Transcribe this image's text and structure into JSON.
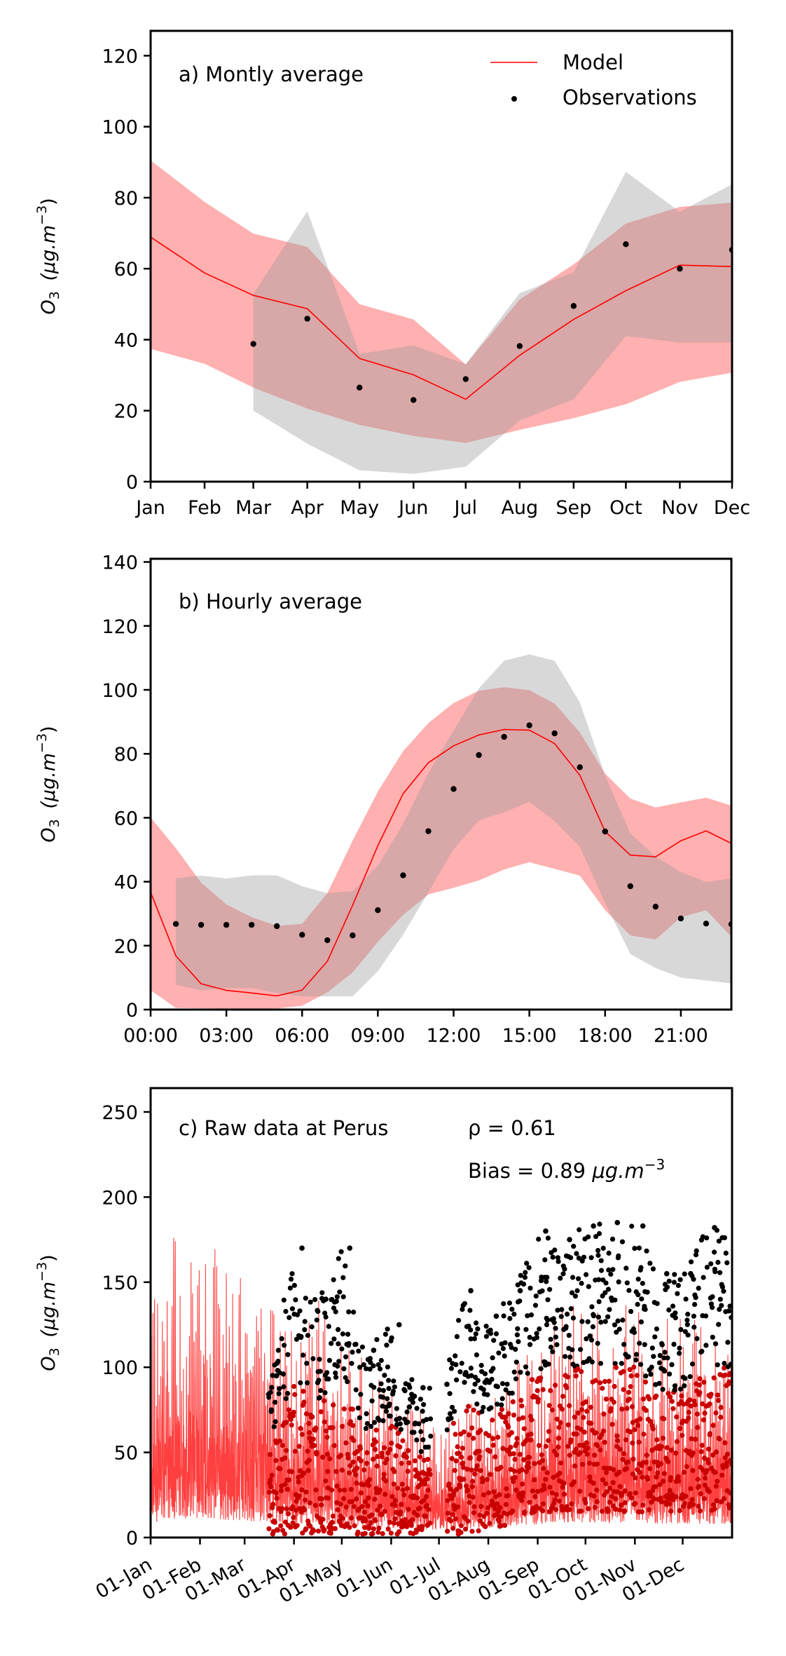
{
  "figure": {
    "ylabel_main": "O",
    "ylabel_sub": "3",
    "ylabel_unit": "(μg.m",
    "ylabel_exp": "−3",
    "ylabel_close": ")"
  },
  "chart_data": [
    {
      "id": "panel-a",
      "type": "line",
      "title": "a) Montly average",
      "xlabel": "",
      "ylabel": "O3 (μg.m−3)",
      "x_ticks": [
        "Jan",
        "Feb",
        "Mar",
        "Apr",
        "May",
        "Jun",
        "Jul",
        "Aug",
        "Sep",
        "Oct",
        "Nov",
        "Dec"
      ],
      "x_tick_days": [
        0,
        31,
        59,
        90,
        120,
        151,
        181,
        212,
        243,
        273,
        304,
        334
      ],
      "xlim_days": [
        0,
        334
      ],
      "ylim": [
        0,
        127
      ],
      "y_ticks": [
        0,
        20,
        40,
        60,
        80,
        100,
        120
      ],
      "legend": {
        "placement": "top-right",
        "entries": [
          {
            "label": "Model",
            "kind": "line",
            "color": "#ff0000"
          },
          {
            "label": "Observations",
            "kind": "dot",
            "color": "#000000"
          }
        ]
      },
      "colors": {
        "model_line": "#ff0000",
        "model_band": "#fcb0b1",
        "obs_band": "#d6d6d6",
        "overlap": "#d8a2a3",
        "obs": "#000000"
      },
      "model": [
        68.9,
        58.8,
        52.5,
        48.7,
        34.7,
        30.1,
        23.2,
        35.6,
        45.7,
        53.8,
        61.0,
        60.6
      ],
      "model_upper": [
        90.5,
        78.8,
        69.9,
        66.1,
        50.0,
        45.7,
        33.0,
        51.3,
        61.2,
        72.7,
        77.4,
        78.6
      ],
      "model_lower": [
        37.4,
        33.2,
        26.5,
        20.6,
        16.0,
        12.9,
        10.9,
        14.6,
        17.9,
        21.8,
        28.1,
        30.7
      ],
      "obs": [
        null,
        null,
        38.8,
        45.9,
        26.5,
        23.0,
        28.9,
        38.2,
        49.5,
        66.9,
        60.0,
        65.3
      ],
      "obs_upper": [
        null,
        null,
        52.9,
        76.2,
        36.0,
        38.4,
        33.1,
        53.1,
        59.0,
        87.3,
        76.0,
        83.8
      ],
      "obs_lower": [
        null,
        null,
        20.0,
        10.7,
        3.2,
        2.2,
        4.2,
        17.2,
        23.2,
        41.0,
        39.2,
        39.2
      ]
    },
    {
      "id": "panel-b",
      "type": "line",
      "title": "b) Hourly average",
      "xlabel": "",
      "ylabel": "O3 (μg.m−3)",
      "x_ticks": [
        "00:00",
        "03:00",
        "06:00",
        "09:00",
        "12:00",
        "15:00",
        "18:00",
        "21:00"
      ],
      "x_tick_hours": [
        0,
        3,
        6,
        9,
        12,
        15,
        18,
        21
      ],
      "xlim": [
        0,
        23
      ],
      "ylim": [
        0,
        141
      ],
      "y_ticks": [
        0,
        20,
        40,
        60,
        80,
        100,
        120,
        140
      ],
      "hours": [
        0,
        1,
        2,
        3,
        4,
        5,
        6,
        7,
        8,
        9,
        10,
        11,
        12,
        13,
        14,
        15,
        16,
        17,
        18,
        19,
        20,
        21,
        22,
        23
      ],
      "model": [
        36.7,
        16.8,
        8.1,
        6.0,
        5.2,
        4.3,
        6.1,
        15.1,
        32.6,
        51.3,
        67.5,
        77.2,
        82.5,
        85.9,
        87.6,
        87.4,
        83.2,
        73.3,
        55.7,
        48.3,
        47.8,
        52.8,
        55.9,
        52.0
      ],
      "model_upper": [
        60.1,
        50.5,
        39.7,
        32.9,
        28.9,
        26.2,
        26.8,
        36.4,
        52.8,
        68.2,
        80.8,
        89.6,
        95.9,
        99.7,
        100.8,
        99.9,
        95.7,
        86.7,
        73.8,
        66.0,
        63.2,
        64.8,
        66.3,
        63.8
      ],
      "model_lower": [
        6.1,
        0.5,
        0.4,
        0.3,
        0.3,
        0.3,
        1.2,
        5.4,
        11.6,
        21.2,
        29.6,
        36.0,
        38.1,
        40.4,
        43.8,
        46.1,
        44.0,
        41.9,
        31.1,
        23.2,
        21.9,
        28.9,
        31.1,
        22.8
      ],
      "obs": [
        null,
        26.8,
        26.5,
        26.5,
        26.5,
        26.1,
        23.4,
        21.7,
        23.2,
        31.1,
        42.0,
        55.8,
        69.0,
        79.6,
        85.3,
        88.9,
        86.4,
        75.8,
        55.7,
        38.6,
        32.2,
        28.5,
        26.9,
        26.7
      ],
      "obs_upper": [
        null,
        41.1,
        41.9,
        41.0,
        42.0,
        42.0,
        38.6,
        36.4,
        37.0,
        45.0,
        58.0,
        74.0,
        87.2,
        100.5,
        109.1,
        111.1,
        109.1,
        96.1,
        73.2,
        55.1,
        47.8,
        43.0,
        39.9,
        41.0
      ],
      "obs_lower": [
        null,
        7.8,
        6.0,
        6.7,
        6.7,
        5.2,
        4.1,
        4.1,
        4.1,
        12.0,
        23.4,
        36.7,
        50.2,
        59.2,
        61.7,
        65.0,
        59.0,
        50.9,
        33.3,
        17.4,
        13.0,
        10.0,
        9.1,
        8.2
      ]
    },
    {
      "id": "panel-c",
      "type": "line",
      "title": "c) Raw data at Perus",
      "stat_rho": "ρ = 0.61",
      "stat_bias_prefix": "Bias = 0.89 ",
      "stat_bias_unit": "μg.m",
      "stat_bias_exp": "−3",
      "xlabel": "",
      "ylabel": "O3 (μg.m−3)",
      "x_ticks": [
        "01-Jan",
        "01-Feb",
        "01-Mar",
        "01-Apr",
        "01-May",
        "01-Jun",
        "01-Jul",
        "01-Aug",
        "01-Sep",
        "01-Oct",
        "01-Nov",
        "01-Dec"
      ],
      "x_tick_days": [
        0,
        31,
        59,
        90,
        120,
        151,
        181,
        212,
        243,
        273,
        304,
        334
      ],
      "xlim_days": [
        0,
        365
      ],
      "ylim": [
        0,
        264
      ],
      "y_ticks": [
        0,
        50,
        100,
        150,
        200,
        250
      ],
      "note": "hourly series summarized as approximate semi-monthly peak values",
      "period_start_days": [
        0,
        15,
        31,
        45,
        59,
        74,
        90,
        105,
        120,
        135,
        151,
        166,
        181,
        196,
        212,
        227,
        243,
        258,
        273,
        288,
        304,
        319,
        334,
        349
      ],
      "model_peak": [
        140,
        185,
        190,
        175,
        160,
        155,
        125,
        150,
        125,
        110,
        95,
        90,
        70,
        75,
        95,
        110,
        120,
        150,
        145,
        140,
        150,
        135,
        145,
        130
      ],
      "obs_peak": [
        null,
        null,
        null,
        null,
        null,
        95,
        170,
        140,
        170,
        110,
        125,
        88,
        90,
        145,
        130,
        145,
        180,
        175,
        183,
        185,
        183,
        155,
        155,
        182
      ],
      "obs_floor": [
        null,
        null,
        null,
        null,
        null,
        2,
        2,
        2,
        2,
        2,
        2,
        2,
        2,
        2,
        5,
        8,
        15,
        15,
        15,
        15,
        15,
        15,
        15,
        15
      ],
      "obs_gaps_days": [
        [
          176,
          186
        ]
      ],
      "colors": {
        "model": "#ff2a2a",
        "obs": "#000000",
        "overlap": "#c80000"
      }
    }
  ]
}
